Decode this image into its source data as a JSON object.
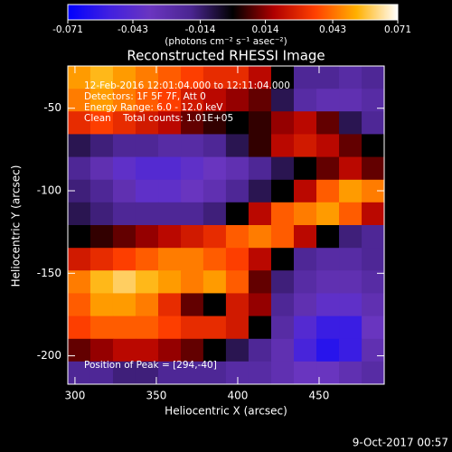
{
  "chart_data": {
    "type": "heatmap",
    "title": "Reconstructed RHESSI Image",
    "xlabel": "Heliocentric X (arcsec)",
    "ylabel": "Heliocentric Y (arcsec)",
    "colorbar_label": "(photons cm⁻² s⁻¹ asec⁻²)",
    "annotations": [
      "12-Feb-2016 12:01:04.000 to 12:11:04.000",
      "Detectors: 1F 5F 7F, Att 0",
      "Energy Range: 6.0 - 12.0 keV",
      "Clean    Total counts: 1.01E+05"
    ],
    "peak_label": "Position of Peak = [294,-40]",
    "footer": "9-Oct-2017 00:57",
    "clim": [
      -0.071,
      0.071
    ],
    "cticks": [
      -0.071,
      -0.043,
      -0.014,
      0.014,
      0.043,
      0.071
    ],
    "colorscale": [
      "#0000ff",
      "#4020e0",
      "#6a35c0",
      "#4a2590",
      "#000000",
      "#b00000",
      "#ff4000",
      "#ffb000",
      "#ffffff"
    ],
    "xlim": [
      295.6,
      490
    ],
    "ylim": [
      -217.2,
      -24.4
    ],
    "xticks": [
      300,
      350,
      400,
      450
    ],
    "yticks": [
      -50,
      -100,
      -150,
      -200
    ],
    "x": [
      302.5,
      316.4,
      330.3,
      344.2,
      358.1,
      372.0,
      385.8,
      399.7,
      413.6,
      427.5,
      441.4,
      455.3,
      469.2,
      483.1
    ],
    "y": [
      -31.3,
      -45.1,
      -58.8,
      -72.6,
      -86.4,
      -100.2,
      -113.9,
      -127.7,
      -141.5,
      -155.2,
      -169.0,
      -182.8,
      -196.6,
      -210.3
    ],
    "z": [
      [
        0.05,
        0.055,
        0.05,
        0.045,
        0.04,
        0.035,
        0.03,
        0.03,
        0.02,
        0.0,
        -0.02,
        -0.02,
        -0.025,
        -0.02
      ],
      [
        0.045,
        0.05,
        0.045,
        0.04,
        0.035,
        0.025,
        0.02,
        0.015,
        0.01,
        -0.01,
        -0.025,
        -0.03,
        -0.03,
        -0.025
      ],
      [
        0.03,
        0.035,
        0.03,
        0.025,
        0.02,
        0.01,
        0.005,
        0.0,
        0.005,
        0.015,
        0.02,
        0.01,
        -0.01,
        -0.02
      ],
      [
        -0.01,
        -0.015,
        -0.02,
        -0.02,
        -0.025,
        -0.025,
        -0.02,
        -0.01,
        0.005,
        0.02,
        0.025,
        0.02,
        0.01,
        0.0
      ],
      [
        -0.02,
        -0.03,
        -0.04,
        -0.045,
        -0.045,
        -0.04,
        -0.035,
        -0.03,
        -0.02,
        -0.01,
        0.0,
        0.01,
        0.02,
        0.01
      ],
      [
        -0.015,
        -0.02,
        -0.03,
        -0.04,
        -0.04,
        -0.035,
        -0.03,
        -0.02,
        -0.01,
        0.0,
        0.02,
        0.04,
        0.05,
        0.045
      ],
      [
        -0.01,
        -0.015,
        -0.02,
        -0.02,
        -0.02,
        -0.02,
        -0.015,
        0.0,
        0.02,
        0.04,
        0.045,
        0.05,
        0.04,
        0.02
      ],
      [
        0.0,
        0.005,
        0.01,
        0.015,
        0.02,
        0.025,
        0.03,
        0.04,
        0.045,
        0.04,
        0.02,
        0.0,
        -0.015,
        -0.02
      ],
      [
        0.025,
        0.03,
        0.035,
        0.04,
        0.045,
        0.045,
        0.04,
        0.035,
        0.02,
        0.0,
        -0.02,
        -0.025,
        -0.025,
        -0.02
      ],
      [
        0.045,
        0.055,
        0.06,
        0.055,
        0.05,
        0.045,
        0.05,
        0.04,
        0.01,
        -0.015,
        -0.025,
        -0.03,
        -0.03,
        -0.025
      ],
      [
        0.04,
        0.05,
        0.05,
        0.045,
        0.03,
        0.01,
        0.0,
        0.025,
        0.015,
        -0.02,
        -0.03,
        -0.04,
        -0.04,
        -0.03
      ],
      [
        0.035,
        0.04,
        0.04,
        0.04,
        0.035,
        0.03,
        0.03,
        0.025,
        0.0,
        -0.025,
        -0.045,
        -0.055,
        -0.055,
        -0.035
      ],
      [
        0.01,
        0.015,
        0.02,
        0.02,
        0.015,
        0.01,
        0.0,
        -0.01,
        -0.02,
        -0.03,
        -0.05,
        -0.06,
        -0.055,
        -0.03
      ],
      [
        -0.02,
        -0.02,
        -0.015,
        -0.015,
        -0.02,
        -0.02,
        -0.02,
        -0.025,
        -0.025,
        -0.03,
        -0.035,
        -0.035,
        -0.03,
        -0.025
      ]
    ]
  }
}
